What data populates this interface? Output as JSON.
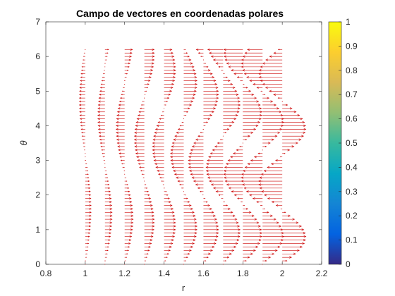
{
  "chart_data": {
    "type": "quiver",
    "title": "Campo de vectores en coordenadas polares",
    "xlabel": "r",
    "ylabel": "θ",
    "xlim": [
      0.8,
      2.2
    ],
    "ylim": [
      0,
      7
    ],
    "xticks": [
      "0.8",
      "1",
      "1.2",
      "1.4",
      "1.6",
      "1.8",
      "2",
      "2.2"
    ],
    "xtick_values": [
      0.8,
      1.0,
      1.2,
      1.4,
      1.6,
      1.8,
      2.0,
      2.2
    ],
    "yticks": [
      "0",
      "1",
      "2",
      "3",
      "4",
      "5",
      "6",
      "7"
    ],
    "ytick_values": [
      0,
      1,
      2,
      3,
      4,
      5,
      6,
      7
    ],
    "r_values": [
      1.0,
      1.1,
      1.2,
      1.3,
      1.4,
      1.5,
      1.6,
      1.7,
      1.8,
      1.9,
      2.0
    ],
    "theta_range": [
      0,
      6.2
    ],
    "theta_count": 63,
    "vector_field": "displacement grows with r; u ≈ 0.03·r²·sin(r·θ)",
    "arrow_color": "#cc0000",
    "grid": false,
    "colorbar": {
      "ticks": [
        "0",
        "0.1",
        "0.2",
        "0.3",
        "0.4",
        "0.5",
        "0.6",
        "0.7",
        "0.8",
        "0.9",
        "1"
      ],
      "tick_values": [
        0,
        0.1,
        0.2,
        0.3,
        0.4,
        0.5,
        0.6,
        0.7,
        0.8,
        0.9,
        1
      ],
      "colormap": "parula",
      "stops": [
        "#352a87",
        "#0363e1",
        "#1485d4",
        "#06a7c6",
        "#38b99e",
        "#92bf73",
        "#d9ba56",
        "#fcce2e",
        "#f9fb0e"
      ]
    }
  }
}
